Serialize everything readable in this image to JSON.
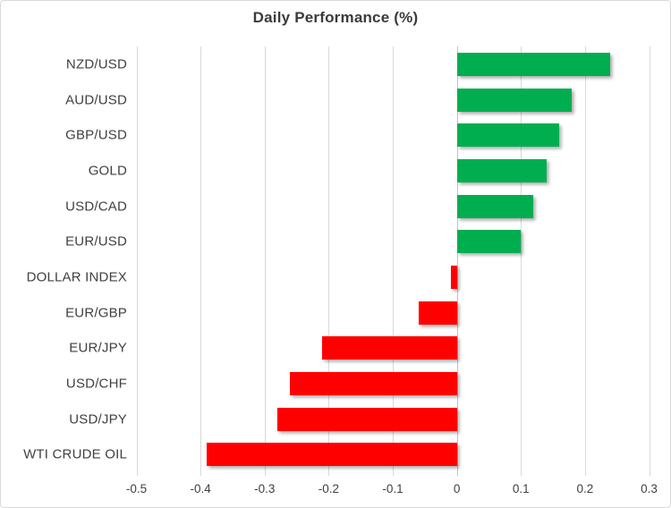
{
  "chart_data": {
    "type": "bar",
    "orientation": "horizontal",
    "title": "Daily Performance (%)",
    "categories": [
      "NZD/USD",
      "AUD/USD",
      "GBP/USD",
      "GOLD",
      "USD/CAD",
      "EUR/USD",
      "DOLLAR INDEX",
      "EUR/GBP",
      "EUR/JPY",
      "USD/CHF",
      "USD/JPY",
      "WTI CRUDE OIL"
    ],
    "values": [
      0.24,
      0.18,
      0.16,
      0.14,
      0.12,
      0.1,
      -0.01,
      -0.06,
      -0.21,
      -0.26,
      -0.28,
      -0.39
    ],
    "xlabel": "",
    "ylabel": "",
    "xlim": [
      -0.5,
      0.3
    ],
    "xticks": [
      "-0.5",
      "-0.4",
      "-0.3",
      "-0.2",
      "-0.1",
      "0",
      "0.1",
      "0.2",
      "0.3"
    ],
    "xtick_values": [
      -0.5,
      -0.4,
      -0.3,
      -0.2,
      -0.1,
      0,
      0.1,
      0.2,
      0.3
    ],
    "grid": "vertical-on",
    "legend": "none",
    "colors": {
      "positive_bar": "#00AE50",
      "negative_bar": "#FF0000",
      "gridline": "#D9D9D9",
      "zero_axis": "#C3C3C3",
      "label_text": "#404040",
      "title_text": "#3B3B3B"
    }
  }
}
